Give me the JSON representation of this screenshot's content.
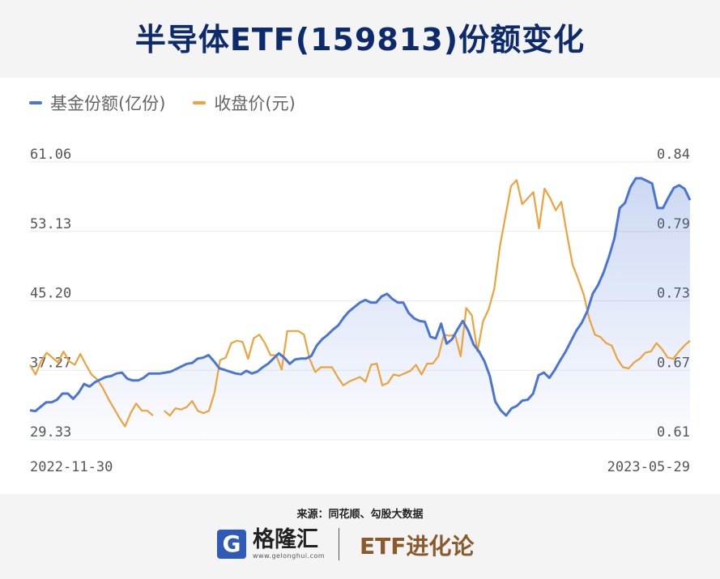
{
  "header": {
    "title": "半导体ETF(159813)份额变化"
  },
  "legend": [
    {
      "label": "基金份额(亿份)",
      "color": "#4a74d6"
    },
    {
      "label": "收盘价(元)",
      "color": "#eea23b"
    }
  ],
  "footer": {
    "source": "来源：同花顺、勾股大数据",
    "brand_name": "格隆汇",
    "brand_icon": "G",
    "brand_url": "www.gelonghui.com",
    "column_name": "ETF进化论"
  },
  "chart_data": {
    "type": "line",
    "x_start_label": "2022-11-30",
    "x_end_label": "2023-05-29",
    "y_left_ticks": [
      "61.06",
      "53.13",
      "45.20",
      "37.27",
      "29.33"
    ],
    "y_right_ticks": [
      "0.84",
      "0.79",
      "0.73",
      "0.67",
      "0.61"
    ],
    "y_left_range": [
      29.33,
      61.06
    ],
    "y_right_range": [
      0.61,
      0.84
    ],
    "series": [
      {
        "name": "基金份额(亿份)",
        "axis": "left",
        "color": "#4a74d6",
        "values": [
          32.7,
          32.6,
          33.1,
          33.6,
          33.6,
          33.9,
          34.6,
          34.6,
          34.0,
          34.7,
          35.7,
          35.4,
          35.9,
          36.2,
          36.5,
          36.6,
          36.9,
          37.0,
          36.3,
          36.1,
          36.1,
          36.4,
          36.9,
          36.9,
          36.9,
          37.0,
          37.1,
          37.4,
          37.7,
          38.0,
          38.1,
          38.6,
          38.7,
          39.0,
          38.3,
          37.5,
          37.3,
          37.1,
          36.9,
          36.8,
          37.2,
          36.9,
          37.1,
          37.6,
          38.0,
          38.6,
          39.2,
          38.7,
          38.0,
          38.5,
          38.6,
          38.6,
          38.9,
          40.1,
          40.8,
          41.3,
          41.9,
          42.4,
          43.3,
          44.0,
          44.5,
          45.0,
          45.3,
          45.0,
          45.0,
          45.7,
          46.0,
          45.4,
          45.0,
          45.0,
          43.8,
          43.2,
          42.9,
          42.8,
          41.1,
          40.9,
          42.6,
          40.3,
          40.8,
          41.9,
          42.9,
          41.8,
          40.2,
          39.4,
          38.3,
          36.6,
          33.7,
          32.7,
          32.1,
          32.9,
          33.2,
          33.8,
          33.9,
          34.6,
          36.7,
          37.0,
          36.4,
          37.3,
          38.4,
          39.4,
          40.6,
          41.8,
          42.7,
          44.0,
          46.0,
          47.0,
          48.4,
          50.2,
          52.3,
          55.8,
          56.4,
          58.2,
          59.2,
          59.2,
          58.9,
          58.6,
          55.8,
          55.8,
          57.0,
          58.1,
          58.4,
          58.0,
          56.7
        ]
      },
      {
        "name": "收盘价(元)",
        "axis": "right",
        "color": "#eea23b",
        "values": [
          0.672,
          0.664,
          0.675,
          0.682,
          0.678,
          0.674,
          0.683,
          0.675,
          0.672,
          0.681,
          0.672,
          0.664,
          0.66,
          0.653,
          0.644,
          0.636,
          0.628,
          0.621,
          0.632,
          0.64,
          0.634,
          0.634,
          0.63,
          null,
          0.634,
          0.63,
          0.636,
          0.635,
          0.637,
          0.642,
          0.634,
          0.632,
          0.634,
          0.649,
          0.676,
          0.678,
          0.69,
          0.692,
          0.691,
          0.677,
          0.694,
          0.697,
          0.69,
          0.68,
          0.68,
          0.668,
          0.7,
          0.7,
          0.7,
          0.697,
          0.677,
          0.666,
          0.67,
          0.67,
          0.67,
          0.662,
          0.655,
          0.658,
          0.66,
          0.662,
          0.658,
          0.672,
          0.673,
          0.655,
          0.657,
          0.664,
          0.663,
          0.665,
          0.667,
          0.672,
          0.664,
          0.673,
          0.673,
          0.679,
          0.697,
          0.696,
          0.697,
          0.679,
          0.719,
          0.713,
          0.683,
          0.708,
          0.718,
          0.735,
          0.77,
          0.795,
          0.82,
          0.825,
          0.805,
          0.81,
          0.815,
          0.785,
          0.818,
          0.81,
          0.8,
          0.807,
          0.78,
          0.755,
          0.743,
          0.73,
          0.71,
          0.697,
          0.695,
          0.69,
          0.688,
          0.677,
          0.67,
          0.669,
          0.674,
          0.677,
          0.682,
          0.683,
          0.69,
          0.685,
          0.678,
          0.677,
          0.683,
          0.688,
          0.692
        ]
      }
    ],
    "grid": true,
    "legend_position": "top-left"
  }
}
